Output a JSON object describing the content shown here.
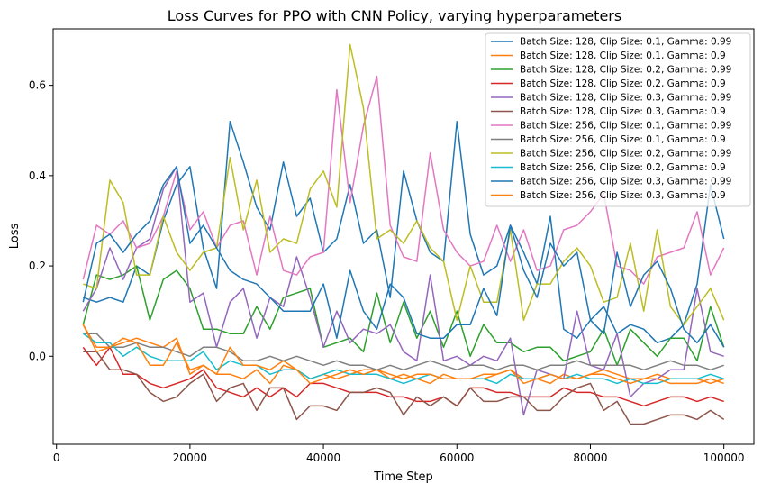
{
  "chart_data": {
    "type": "line",
    "title": "Loss Curves for PPO with CNN Policy, varying hyperparameters",
    "xlabel": "Time Step",
    "ylabel": "Loss",
    "xlim": [
      -500,
      104500
    ],
    "ylim": [
      -0.195,
      0.725
    ],
    "x_ticks": [
      0,
      20000,
      40000,
      60000,
      80000,
      100000
    ],
    "x_tick_labels": [
      "0",
      "20000",
      "40000",
      "60000",
      "80000",
      "100000"
    ],
    "y_ticks": [
      0.0,
      0.2,
      0.4,
      0.6
    ],
    "y_tick_labels": [
      "0.0",
      "0.2",
      "0.4",
      "0.6"
    ],
    "grid": false,
    "legend_position": "top-right",
    "x": [
      4000,
      6000,
      8000,
      10000,
      12000,
      14000,
      16000,
      18000,
      20000,
      22000,
      24000,
      26000,
      28000,
      30000,
      32000,
      34000,
      36000,
      38000,
      40000,
      42000,
      44000,
      46000,
      48000,
      50000,
      52000,
      54000,
      56000,
      58000,
      60000,
      62000,
      64000,
      66000,
      68000,
      70000,
      72000,
      74000,
      76000,
      78000,
      80000,
      82000,
      84000,
      86000,
      88000,
      90000,
      92000,
      94000,
      96000,
      98000,
      100000
    ],
    "series": [
      {
        "name": "Batch Size: 128, Clip Size: 0.1, Gamma: 0.99",
        "color": "#1f77b4",
        "values": [
          0.13,
          0.12,
          0.13,
          0.12,
          0.2,
          0.18,
          0.3,
          0.38,
          0.42,
          0.24,
          0.15,
          0.52,
          0.43,
          0.33,
          0.28,
          0.43,
          0.31,
          0.35,
          0.23,
          0.26,
          0.38,
          0.25,
          0.28,
          0.13,
          0.41,
          0.3,
          0.23,
          0.21,
          0.52,
          0.27,
          0.18,
          0.2,
          0.29,
          0.23,
          0.16,
          0.31,
          0.06,
          0.04,
          0.08,
          0.11,
          0.05,
          0.07,
          0.06,
          0.03,
          0.04,
          0.07,
          0.16,
          0.38,
          0.26
        ]
      },
      {
        "name": "Batch Size: 128, Clip Size: 0.1, Gamma: 0.9",
        "color": "#ff7f0e",
        "values": [
          0.07,
          0.02,
          0.02,
          0.03,
          0.04,
          0.03,
          0.02,
          0.04,
          -0.04,
          -0.02,
          -0.04,
          -0.04,
          -0.05,
          -0.03,
          -0.06,
          -0.02,
          -0.03,
          -0.05,
          -0.04,
          -0.05,
          -0.04,
          -0.03,
          -0.03,
          -0.05,
          -0.04,
          -0.05,
          -0.06,
          -0.04,
          -0.05,
          -0.05,
          -0.05,
          -0.04,
          -0.03,
          -0.05,
          -0.05,
          -0.06,
          -0.04,
          -0.05,
          -0.04,
          -0.03,
          -0.04,
          -0.05,
          -0.05,
          -0.04,
          -0.05,
          -0.05,
          -0.05,
          -0.06,
          -0.05
        ]
      },
      {
        "name": "Batch Size: 128, Clip Size: 0.2, Gamma: 0.99",
        "color": "#2ca02c",
        "values": [
          0.07,
          0.18,
          0.17,
          0.18,
          0.2,
          0.08,
          0.17,
          0.19,
          0.15,
          0.06,
          0.06,
          0.05,
          0.05,
          0.11,
          0.06,
          0.13,
          0.14,
          0.15,
          0.02,
          0.03,
          0.04,
          0.01,
          0.14,
          0.03,
          0.12,
          0.04,
          0.1,
          0.02,
          0.1,
          0.0,
          0.07,
          0.03,
          0.03,
          0.01,
          0.02,
          0.02,
          -0.01,
          0.0,
          0.01,
          0.06,
          -0.02,
          0.06,
          0.03,
          0.0,
          0.04,
          0.04,
          -0.01,
          0.11,
          0.02
        ]
      },
      {
        "name": "Batch Size: 128, Clip Size: 0.2, Gamma: 0.9",
        "color": "#d62728",
        "values": [
          0.02,
          -0.02,
          0.02,
          -0.04,
          -0.04,
          -0.06,
          -0.07,
          -0.06,
          -0.05,
          -0.03,
          -0.07,
          -0.08,
          -0.09,
          -0.07,
          -0.09,
          -0.07,
          -0.09,
          -0.06,
          -0.06,
          -0.07,
          -0.08,
          -0.08,
          -0.08,
          -0.09,
          -0.09,
          -0.1,
          -0.1,
          -0.09,
          -0.11,
          -0.07,
          -0.07,
          -0.08,
          -0.08,
          -0.09,
          -0.09,
          -0.09,
          -0.07,
          -0.08,
          -0.08,
          -0.09,
          -0.09,
          -0.1,
          -0.11,
          -0.1,
          -0.09,
          -0.09,
          -0.1,
          -0.09,
          -0.1
        ]
      },
      {
        "name": "Batch Size: 128, Clip Size: 0.3, Gamma: 0.99",
        "color": "#9467bd",
        "values": [
          0.1,
          0.15,
          0.24,
          0.17,
          0.24,
          0.26,
          0.37,
          0.42,
          0.12,
          0.14,
          0.02,
          0.12,
          0.15,
          0.04,
          0.13,
          0.11,
          0.22,
          0.13,
          0.02,
          0.1,
          0.03,
          0.06,
          0.05,
          0.07,
          0.01,
          -0.01,
          0.18,
          -0.01,
          0.0,
          -0.02,
          0.0,
          -0.01,
          0.04,
          -0.13,
          -0.03,
          -0.04,
          -0.05,
          0.1,
          -0.02,
          -0.03,
          0.05,
          -0.09,
          -0.06,
          -0.05,
          -0.03,
          -0.03,
          0.15,
          0.01,
          0.0
        ]
      },
      {
        "name": "Batch Size: 128, Clip Size: 0.3, Gamma: 0.9",
        "color": "#8c564b",
        "values": [
          0.01,
          0.01,
          -0.03,
          -0.03,
          -0.04,
          -0.08,
          -0.1,
          -0.09,
          -0.06,
          -0.04,
          -0.1,
          -0.07,
          -0.06,
          -0.12,
          -0.07,
          -0.07,
          -0.14,
          -0.11,
          -0.11,
          -0.12,
          -0.08,
          -0.08,
          -0.07,
          -0.08,
          -0.13,
          -0.09,
          -0.11,
          -0.09,
          -0.11,
          -0.07,
          -0.1,
          -0.1,
          -0.09,
          -0.09,
          -0.12,
          -0.12,
          -0.09,
          -0.07,
          -0.06,
          -0.12,
          -0.1,
          -0.15,
          -0.15,
          -0.14,
          -0.13,
          -0.13,
          -0.14,
          -0.12,
          -0.14
        ]
      },
      {
        "name": "Batch Size: 256, Clip Size: 0.1, Gamma: 0.99",
        "color": "#e377c2",
        "values": [
          0.17,
          0.29,
          0.27,
          0.3,
          0.24,
          0.25,
          0.31,
          0.41,
          0.28,
          0.32,
          0.24,
          0.29,
          0.3,
          0.18,
          0.31,
          0.19,
          0.18,
          0.22,
          0.23,
          0.59,
          0.34,
          0.51,
          0.62,
          0.29,
          0.22,
          0.21,
          0.45,
          0.28,
          0.23,
          0.2,
          0.21,
          0.29,
          0.21,
          0.28,
          0.19,
          0.2,
          0.28,
          0.29,
          0.32,
          0.36,
          0.2,
          0.19,
          0.16,
          0.22,
          0.23,
          0.24,
          0.32,
          0.18,
          0.24
        ]
      },
      {
        "name": "Batch Size: 256, Clip Size: 0.1, Gamma: 0.9",
        "color": "#7f7f7f",
        "values": [
          0.05,
          0.05,
          0.02,
          0.02,
          0.03,
          0.02,
          0.02,
          0.01,
          0.0,
          0.02,
          0.02,
          0.01,
          -0.01,
          -0.01,
          0.0,
          -0.01,
          0.0,
          -0.01,
          -0.02,
          -0.01,
          -0.02,
          -0.02,
          -0.03,
          -0.02,
          -0.03,
          -0.02,
          -0.01,
          -0.02,
          -0.03,
          -0.02,
          -0.02,
          -0.03,
          -0.02,
          -0.02,
          -0.03,
          -0.02,
          -0.02,
          -0.01,
          -0.02,
          -0.02,
          -0.02,
          -0.02,
          -0.03,
          -0.02,
          -0.01,
          -0.02,
          -0.02,
          -0.03,
          -0.02
        ]
      },
      {
        "name": "Batch Size: 256, Clip Size: 0.2, Gamma: 0.99",
        "color": "#bcbd22",
        "values": [
          0.16,
          0.15,
          0.39,
          0.34,
          0.18,
          0.18,
          0.31,
          0.23,
          0.19,
          0.23,
          0.24,
          0.44,
          0.28,
          0.39,
          0.23,
          0.26,
          0.25,
          0.37,
          0.41,
          0.33,
          0.69,
          0.55,
          0.26,
          0.28,
          0.25,
          0.3,
          0.24,
          0.21,
          0.08,
          0.2,
          0.12,
          0.12,
          0.28,
          0.08,
          0.16,
          0.16,
          0.21,
          0.24,
          0.2,
          0.12,
          0.13,
          0.25,
          0.1,
          0.28,
          0.11,
          0.07,
          0.11,
          0.15,
          0.08
        ]
      },
      {
        "name": "Batch Size: 256, Clip Size: 0.2, Gamma: 0.9",
        "color": "#17becf",
        "values": [
          0.05,
          0.03,
          0.03,
          0.0,
          0.02,
          0.0,
          -0.01,
          -0.01,
          -0.01,
          0.01,
          -0.03,
          -0.01,
          -0.02,
          -0.02,
          -0.04,
          -0.03,
          -0.03,
          -0.05,
          -0.04,
          -0.03,
          -0.04,
          -0.04,
          -0.04,
          -0.05,
          -0.06,
          -0.05,
          -0.04,
          -0.05,
          -0.05,
          -0.05,
          -0.05,
          -0.06,
          -0.04,
          -0.05,
          -0.05,
          -0.04,
          -0.05,
          -0.04,
          -0.05,
          -0.05,
          -0.06,
          -0.05,
          -0.06,
          -0.06,
          -0.05,
          -0.05,
          -0.05,
          -0.04,
          -0.05
        ]
      },
      {
        "name": "Batch Size: 256, Clip Size: 0.3, Gamma: 0.99",
        "color": "#1f77b4",
        "values": [
          0.12,
          0.25,
          0.27,
          0.23,
          0.27,
          0.3,
          0.38,
          0.42,
          0.25,
          0.29,
          0.24,
          0.19,
          0.17,
          0.16,
          0.13,
          0.1,
          0.1,
          0.1,
          0.16,
          0.04,
          0.19,
          0.1,
          0.06,
          0.16,
          0.13,
          0.05,
          0.04,
          0.04,
          0.07,
          0.07,
          0.15,
          0.09,
          0.29,
          0.19,
          0.13,
          0.25,
          0.2,
          0.23,
          0.08,
          0.05,
          0.23,
          0.11,
          0.18,
          0.21,
          0.15,
          0.06,
          0.03,
          0.07,
          0.02
        ]
      },
      {
        "name": "Batch Size: 256, Clip Size: 0.3, Gamma: 0.9",
        "color": "#ff7f0e",
        "values": [
          0.07,
          0.01,
          0.02,
          0.04,
          0.03,
          -0.02,
          -0.02,
          0.03,
          -0.03,
          -0.02,
          -0.04,
          0.02,
          -0.02,
          -0.02,
          -0.03,
          -0.01,
          -0.03,
          -0.06,
          -0.05,
          -0.04,
          -0.03,
          -0.04,
          -0.03,
          -0.04,
          -0.05,
          -0.04,
          -0.04,
          -0.05,
          -0.05,
          -0.05,
          -0.04,
          -0.04,
          -0.03,
          -0.06,
          -0.05,
          -0.04,
          -0.05,
          -0.05,
          -0.04,
          -0.04,
          -0.05,
          -0.06,
          -0.05,
          -0.05,
          -0.06,
          -0.06,
          -0.06,
          -0.05,
          -0.06
        ]
      }
    ]
  }
}
